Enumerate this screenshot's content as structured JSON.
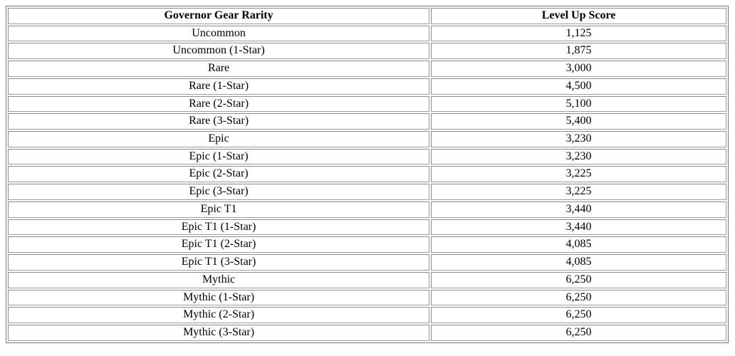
{
  "table": {
    "headers": {
      "rarity": "Governor Gear Rarity",
      "score": "Level Up Score"
    },
    "rows": [
      {
        "rarity": "Uncommon",
        "score": "1,125"
      },
      {
        "rarity": "Uncommon (1-Star)",
        "score": "1,875"
      },
      {
        "rarity": "Rare",
        "score": "3,000"
      },
      {
        "rarity": "Rare (1-Star)",
        "score": "4,500"
      },
      {
        "rarity": "Rare (2-Star)",
        "score": "5,100"
      },
      {
        "rarity": "Rare (3-Star)",
        "score": "5,400"
      },
      {
        "rarity": "Epic",
        "score": "3,230"
      },
      {
        "rarity": "Epic (1-Star)",
        "score": "3,230"
      },
      {
        "rarity": "Epic (2-Star)",
        "score": "3,225"
      },
      {
        "rarity": "Epic (3-Star)",
        "score": "3,225"
      },
      {
        "rarity": "Epic T1",
        "score": "3,440"
      },
      {
        "rarity": "Epic T1 (1-Star)",
        "score": "3,440"
      },
      {
        "rarity": "Epic T1 (2-Star)",
        "score": "4,085"
      },
      {
        "rarity": "Epic T1 (3-Star)",
        "score": "4,085"
      },
      {
        "rarity": "Mythic",
        "score": "6,250"
      },
      {
        "rarity": "Mythic (1-Star)",
        "score": "6,250"
      },
      {
        "rarity": "Mythic (2-Star)",
        "score": "6,250"
      },
      {
        "rarity": "Mythic (3-Star)",
        "score": "6,250"
      }
    ],
    "colors": {
      "background": "#ffffff",
      "text": "#000000",
      "outer_border": "#767676",
      "cell_border": "#9b9b9b"
    }
  }
}
